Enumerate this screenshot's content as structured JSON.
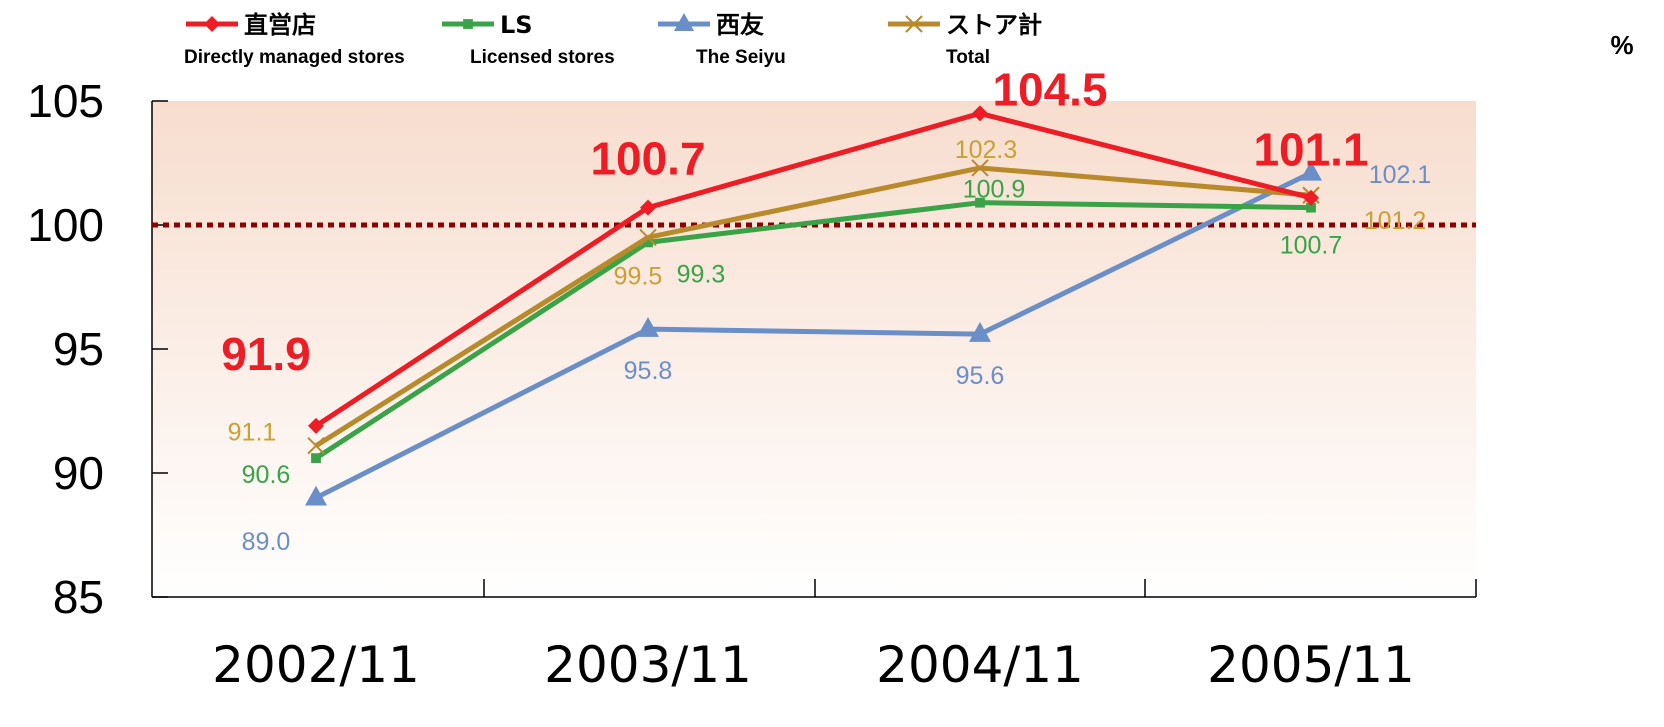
{
  "chart_data": {
    "type": "line",
    "title": "",
    "xlabel": "",
    "ylabel": "",
    "unit": "%",
    "categories": [
      "2002/11",
      "2003/11",
      "2004/11",
      "2005/11"
    ],
    "ylim": [
      85,
      105
    ],
    "yticks": [
      "85",
      "90",
      "95",
      "100",
      "105"
    ],
    "reference_line": 100,
    "legend_position": "top",
    "series": [
      {
        "name": "直営店",
        "name_en": "Directly managed stores",
        "color": "#ee1c24",
        "marker": "diamond",
        "values": [
          91.9,
          100.7,
          104.5,
          101.1
        ],
        "labels": [
          "91.9",
          "100.7",
          "104.5",
          "101.1"
        ]
      },
      {
        "name": "LS",
        "name_en": "Licensed stores",
        "color": "#3aa348",
        "marker": "square",
        "values": [
          90.6,
          99.3,
          100.9,
          100.7
        ],
        "labels": [
          "90.6",
          "99.3",
          "100.9",
          "100.7"
        ]
      },
      {
        "name": "西友",
        "name_en": "The Seiyu",
        "color": "#6a8fc8",
        "marker": "triangle",
        "values": [
          89.0,
          95.8,
          95.6,
          102.1
        ],
        "labels": [
          "89.0",
          "95.8",
          "95.6",
          "102.1"
        ]
      },
      {
        "name": "ストア計",
        "name_en": "Total",
        "color": "#b88a2c",
        "marker": "x",
        "values": [
          91.1,
          99.5,
          102.3,
          101.2
        ],
        "labels": [
          "91.1",
          "99.5",
          "102.3",
          "101.2"
        ]
      }
    ]
  }
}
